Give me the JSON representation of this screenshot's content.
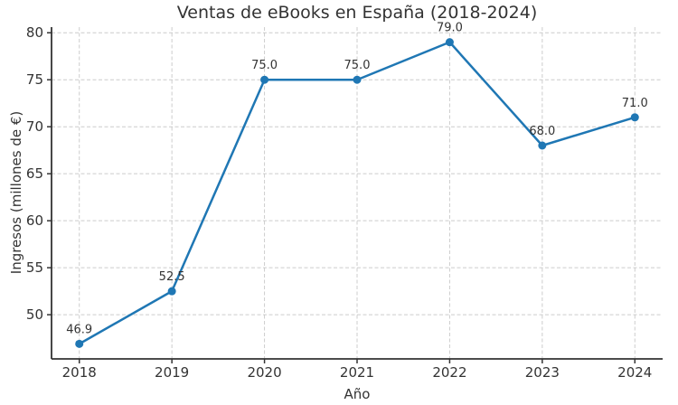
{
  "chart_data": {
    "type": "line",
    "title": "Ventas de eBooks en España (2018-2024)",
    "xlabel": "Año",
    "ylabel": "Ingresos (millones de €)",
    "x": [
      2018,
      2019,
      2020,
      2021,
      2022,
      2023,
      2024
    ],
    "series": [
      {
        "name": "Ingresos",
        "values": [
          46.9,
          52.5,
          75.0,
          75.0,
          79.0,
          68.0,
          71.0
        ],
        "point_labels": [
          "46.9",
          "52.5",
          "75.0",
          "75.0",
          "79.0",
          "68.0",
          "71.0"
        ]
      }
    ],
    "x_ticks": [
      "2018",
      "2019",
      "2020",
      "2021",
      "2022",
      "2023",
      "2024"
    ],
    "y_ticks": [
      "50",
      "55",
      "60",
      "65",
      "70",
      "75",
      "80"
    ],
    "y_tick_values": [
      50,
      55,
      60,
      65,
      70,
      75,
      80
    ],
    "xlim": [
      2017.7,
      2024.3
    ],
    "ylim": [
      45.3,
      80.6
    ],
    "grid": "dashed-both-axes",
    "legend": "none",
    "line_color": "#1f77b4",
    "marker": "circle",
    "marker_color": "#1f77b4",
    "grid_color": "#cccccc",
    "spine_color": "#333333",
    "text_color": "#333333",
    "background_color": "#ffffff"
  }
}
